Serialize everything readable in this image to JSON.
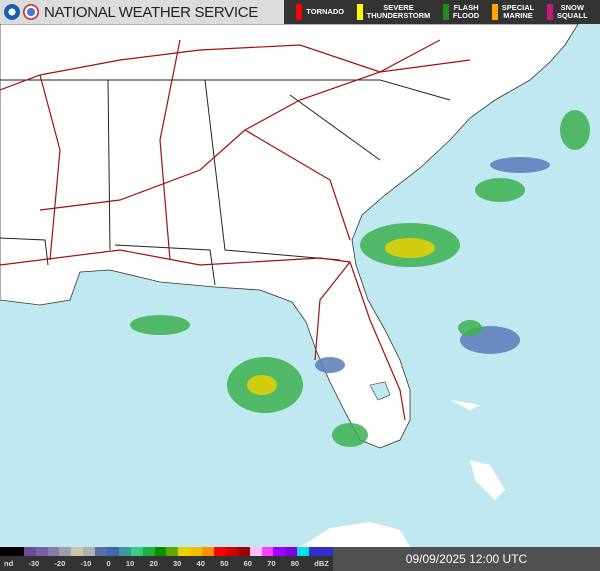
{
  "header": {
    "title": "NATIONAL WEATHER SERVICE",
    "logos": [
      "noaa-logo",
      "nws-logo"
    ]
  },
  "warnings": [
    {
      "label": "TORNADO",
      "color": "#ff0000"
    },
    {
      "label": "SEVERE\nTHUNDERSTORM",
      "color": "#ffff00"
    },
    {
      "label": "FLASH\nFLOOD",
      "color": "#228b22"
    },
    {
      "label": "SPECIAL\nMARINE",
      "color": "#ffa500"
    },
    {
      "label": "SNOW\nSQUALL",
      "color": "#c71585"
    }
  ],
  "legend": {
    "ticks": [
      "nd",
      "-30",
      "-20",
      "-10",
      "0",
      "10",
      "20",
      "30",
      "40",
      "50",
      "60",
      "70",
      "80",
      "dBZ"
    ],
    "colors": [
      "#000",
      "#000",
      "#6a4c9c",
      "#7a5fa8",
      "#8c7aa8",
      "#a09cb0",
      "#c8c8a8",
      "#b0b0b0",
      "#5a6ea8",
      "#4466aa",
      "#3a9a9a",
      "#3acc80",
      "#20b040",
      "#009000",
      "#60a800",
      "#e8d000",
      "#f0c000",
      "#ff9000",
      "#ff0000",
      "#d00000",
      "#a00000",
      "#ffc0ff",
      "#ff40ff",
      "#a000ff",
      "#8000e0",
      "#00e0e8",
      "#3030c8",
      "#3030c8"
    ]
  },
  "timestamp": "09/09/2025 12:00 UTC",
  "map": {
    "water": "#c0e8f0",
    "land": "#ffffff",
    "roads": "#a01010"
  }
}
